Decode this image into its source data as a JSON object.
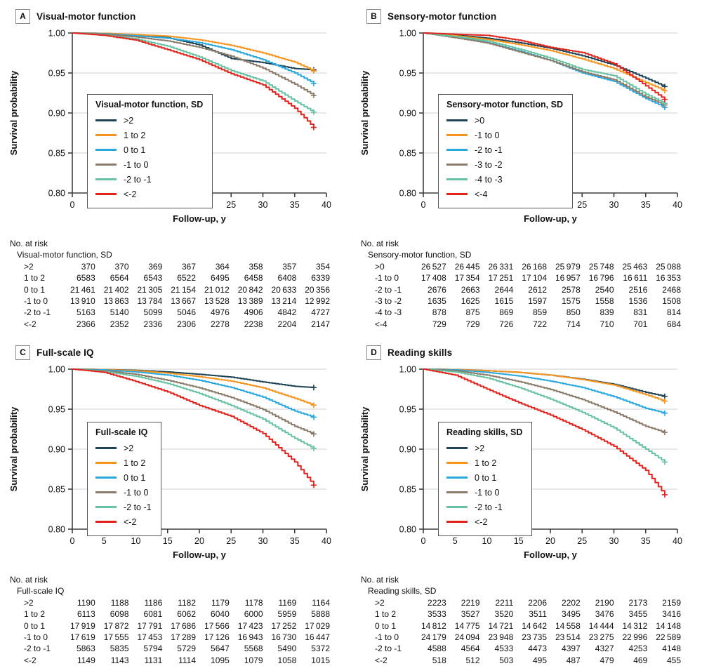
{
  "shared": {
    "xlabel": "Follow-up, y",
    "ylabel": "Survival probability",
    "risk_header": "No. at risk",
    "colors": {
      "navy": "#1D4354",
      "orange": "#F7941E",
      "blue": "#29A8E0",
      "brown": "#8A7A68",
      "teal": "#66C2A0",
      "red": "#E2231B",
      "grid": "#DBDBDB",
      "axis": "#3F3F3F",
      "legend_border": "#565656"
    }
  },
  "chart_data": [
    {
      "type": "line",
      "letter": "A",
      "title": "Visual-motor function",
      "legend_title": "Visual-motor function, SD",
      "xlabel": "Follow-up, y",
      "ylabel": "Survival probability",
      "xlim": [
        0,
        40
      ],
      "ylim": [
        0.8,
        1.0
      ],
      "xticks": [
        0,
        5,
        10,
        15,
        20,
        25,
        30,
        35,
        40
      ],
      "yticks": [
        1.0,
        0.95,
        0.9,
        0.85,
        0.8
      ],
      "grid": "horizontal",
      "legend_position": "inside-left",
      "x": [
        0,
        5,
        10,
        15,
        20,
        25,
        30,
        35,
        38
      ],
      "series": [
        {
          "name": ">2",
          "color": "#1D4354",
          "values": [
            1.0,
            0.9995,
            0.9975,
            0.994,
            0.985,
            0.968,
            0.963,
            0.9555,
            0.954
          ]
        },
        {
          "name": "1 to 2",
          "color": "#F7941E",
          "values": [
            1.0,
            0.9995,
            0.998,
            0.996,
            0.9915,
            0.9845,
            0.975,
            0.9635,
            0.9525
          ]
        },
        {
          "name": "0 to 1",
          "color": "#29A8E0",
          "values": [
            1.0,
            0.999,
            0.9965,
            0.9935,
            0.988,
            0.979,
            0.9665,
            0.95,
            0.937
          ]
        },
        {
          "name": "-1 to 0",
          "color": "#8A7A68",
          "values": [
            1.0,
            0.9985,
            0.995,
            0.99,
            0.982,
            0.971,
            0.956,
            0.936,
            0.922
          ]
        },
        {
          "name": "-2 to -1",
          "color": "#66C2A0",
          "values": [
            1.0,
            0.9975,
            0.9925,
            0.9835,
            0.97,
            0.953,
            0.94,
            0.915,
            0.901
          ]
        },
        {
          "name": "<-2",
          "color": "#E2231B",
          "values": [
            1.0,
            0.997,
            0.991,
            0.979,
            0.9665,
            0.949,
            0.935,
            0.906,
            0.882
          ]
        }
      ],
      "risk_table": {
        "subheader": "Visual-motor function, SD",
        "times": [
          0,
          5,
          10,
          15,
          20,
          25,
          30,
          35
        ],
        "rows": [
          {
            "label": ">2",
            "values": [
              "370",
              "370",
              "369",
              "367",
              "364",
              "358",
              "357",
              "354"
            ]
          },
          {
            "label": "1 to 2",
            "values": [
              "6583",
              "6564",
              "6543",
              "6522",
              "6495",
              "6458",
              "6408",
              "6339"
            ]
          },
          {
            "label": "0 to 1",
            "values": [
              "21 461",
              "21 402",
              "21 305",
              "21 154",
              "21 012",
              "20 842",
              "20 633",
              "20 356"
            ]
          },
          {
            "label": "-1 to 0",
            "values": [
              "13 910",
              "13 863",
              "13 784",
              "13 667",
              "13 528",
              "13 389",
              "13 214",
              "12 992"
            ]
          },
          {
            "label": "-2 to -1",
            "values": [
              "5163",
              "5140",
              "5099",
              "5046",
              "4976",
              "4906",
              "4842",
              "4727"
            ]
          },
          {
            "label": "<-2",
            "values": [
              "2366",
              "2352",
              "2336",
              "2306",
              "2278",
              "2238",
              "2204",
              "2147"
            ]
          }
        ]
      }
    },
    {
      "type": "line",
      "letter": "B",
      "title": "Sensory-motor function",
      "legend_title": "Sensory-motor function, SD",
      "xlabel": "Follow-up, y",
      "ylabel": "Survival probability",
      "xlim": [
        0,
        40
      ],
      "ylim": [
        0.8,
        1.0
      ],
      "xticks": [
        0,
        5,
        10,
        15,
        20,
        25,
        30,
        35,
        40
      ],
      "yticks": [
        1.0,
        0.95,
        0.9,
        0.85,
        0.8
      ],
      "grid": "horizontal",
      "legend_position": "inside-left",
      "x": [
        0,
        5,
        10,
        15,
        20,
        25,
        30,
        35,
        38
      ],
      "series": [
        {
          "name": ">0",
          "color": "#1D4354",
          "values": [
            1.0,
            0.9975,
            0.9935,
            0.988,
            0.981,
            0.9715,
            0.96,
            0.9435,
            0.933
          ]
        },
        {
          "name": "-1 to 0",
          "color": "#F7941E",
          "values": [
            1.0,
            0.9965,
            0.992,
            0.9855,
            0.978,
            0.9675,
            0.9555,
            0.938,
            0.928
          ]
        },
        {
          "name": "-2 to -1",
          "color": "#29A8E0",
          "values": [
            1.0,
            0.995,
            0.988,
            0.9775,
            0.9655,
            0.95,
            0.9395,
            0.918,
            0.907
          ]
        },
        {
          "name": "-3 to -2",
          "color": "#8A7A68",
          "values": [
            1.0,
            0.994,
            0.9875,
            0.9765,
            0.9655,
            0.9515,
            0.9415,
            0.92,
            0.91
          ]
        },
        {
          "name": "-4 to -3",
          "color": "#66C2A0",
          "values": [
            1.0,
            0.9955,
            0.99,
            0.98,
            0.9685,
            0.9545,
            0.9465,
            0.9235,
            0.912
          ]
        },
        {
          "name": "<-4",
          "color": "#E2231B",
          "values": [
            1.0,
            0.9985,
            0.997,
            0.991,
            0.982,
            0.9755,
            0.9615,
            0.934,
            0.917
          ]
        }
      ],
      "risk_table": {
        "subheader": "Sensory-motor function, SD",
        "times": [
          0,
          5,
          10,
          15,
          20,
          25,
          30,
          35
        ],
        "rows": [
          {
            "label": ">0",
            "values": [
              "26 527",
              "26 445",
              "26 331",
              "26 168",
              "25 979",
              "25 748",
              "25 463",
              "25 088"
            ]
          },
          {
            "label": "-1 to 0",
            "values": [
              "17 408",
              "17 354",
              "17 251",
              "17 104",
              "16 957",
              "16 796",
              "16 611",
              "16 353"
            ]
          },
          {
            "label": "-2 to -1",
            "values": [
              "2676",
              "2663",
              "2644",
              "2612",
              "2578",
              "2540",
              "2516",
              "2468"
            ]
          },
          {
            "label": "-3 to -2",
            "values": [
              "1635",
              "1625",
              "1615",
              "1597",
              "1575",
              "1558",
              "1536",
              "1508"
            ]
          },
          {
            "label": "-4 to -3",
            "values": [
              "878",
              "875",
              "869",
              "859",
              "850",
              "839",
              "831",
              "814"
            ]
          },
          {
            "label": "<-4",
            "values": [
              "729",
              "729",
              "726",
              "722",
              "714",
              "710",
              "701",
              "684"
            ]
          }
        ]
      }
    },
    {
      "type": "line",
      "letter": "C",
      "title": "Full-scale IQ",
      "legend_title": "Full-scale IQ",
      "xlabel": "Follow-up, y",
      "ylabel": "Survival probability",
      "xlim": [
        0,
        40
      ],
      "ylim": [
        0.8,
        1.0
      ],
      "xticks": [
        0,
        5,
        10,
        15,
        20,
        25,
        30,
        35,
        40
      ],
      "yticks": [
        1.0,
        0.95,
        0.9,
        0.85,
        0.8
      ],
      "grid": "horizontal",
      "legend_position": "inside-left",
      "x": [
        0,
        5,
        10,
        15,
        20,
        25,
        30,
        35,
        38
      ],
      "series": [
        {
          "name": ">2",
          "color": "#1D4354",
          "values": [
            1.0,
            0.9995,
            0.9985,
            0.9965,
            0.9935,
            0.99,
            0.984,
            0.9785,
            0.977
          ]
        },
        {
          "name": "1 to 2",
          "color": "#F7941E",
          "values": [
            1.0,
            0.9995,
            0.998,
            0.995,
            0.9905,
            0.985,
            0.9765,
            0.9635,
            0.955
          ]
        },
        {
          "name": "0 to 1",
          "color": "#29A8E0",
          "values": [
            1.0,
            0.999,
            0.9965,
            0.9925,
            0.986,
            0.977,
            0.965,
            0.9475,
            0.94
          ]
        },
        {
          "name": "-1 to 0",
          "color": "#8A7A68",
          "values": [
            1.0,
            0.998,
            0.9935,
            0.986,
            0.9765,
            0.9645,
            0.9495,
            0.9285,
            0.919
          ]
        },
        {
          "name": "-2 to -1",
          "color": "#66C2A0",
          "values": [
            1.0,
            0.997,
            0.991,
            0.982,
            0.9695,
            0.9545,
            0.9375,
            0.9135,
            0.901
          ]
        },
        {
          "name": "<-2",
          "color": "#E2231B",
          "values": [
            1.0,
            0.996,
            0.9845,
            0.9715,
            0.9545,
            0.941,
            0.9195,
            0.884,
            0.855
          ]
        }
      ],
      "risk_table": {
        "subheader": "Full-scale IQ",
        "times": [
          0,
          5,
          10,
          15,
          20,
          25,
          30,
          35
        ],
        "rows": [
          {
            "label": ">2",
            "values": [
              "1190",
              "1188",
              "1186",
              "1182",
              "1179",
              "1178",
              "1169",
              "1164"
            ]
          },
          {
            "label": "1 to 2",
            "values": [
              "6113",
              "6098",
              "6081",
              "6062",
              "6040",
              "6000",
              "5959",
              "5888"
            ]
          },
          {
            "label": "0 to 1",
            "values": [
              "17 919",
              "17 872",
              "17 791",
              "17 686",
              "17 566",
              "17 423",
              "17 252",
              "17 029"
            ]
          },
          {
            "label": "-1 to 0",
            "values": [
              "17 619",
              "17 555",
              "17 453",
              "17 289",
              "17 126",
              "16 943",
              "16 730",
              "16 447"
            ]
          },
          {
            "label": "-2 to -1",
            "values": [
              "5863",
              "5835",
              "5794",
              "5729",
              "5647",
              "5568",
              "5490",
              "5372"
            ]
          },
          {
            "label": "<-2",
            "values": [
              "1149",
              "1143",
              "1131",
              "1114",
              "1095",
              "1079",
              "1058",
              "1015"
            ]
          }
        ]
      }
    },
    {
      "type": "line",
      "letter": "D",
      "title": "Reading skills",
      "legend_title": "Reading skills, SD",
      "xlabel": "Follow-up, y",
      "ylabel": "Survival probability",
      "xlim": [
        0,
        40
      ],
      "ylim": [
        0.8,
        1.0
      ],
      "xticks": [
        0,
        5,
        10,
        15,
        20,
        25,
        30,
        35,
        40
      ],
      "yticks": [
        1.0,
        0.95,
        0.9,
        0.85,
        0.8
      ],
      "grid": "horizontal",
      "legend_position": "inside-left",
      "x": [
        0,
        5,
        10,
        15,
        20,
        25,
        30,
        35,
        38
      ],
      "series": [
        {
          "name": ">2",
          "color": "#1D4354",
          "values": [
            1.0,
            0.9995,
            0.998,
            0.996,
            0.9925,
            0.9875,
            0.981,
            0.971,
            0.966
          ]
        },
        {
          "name": "1 to 2",
          "color": "#F7941E",
          "values": [
            1.0,
            0.9995,
            0.998,
            0.996,
            0.9925,
            0.987,
            0.98,
            0.968,
            0.96
          ]
        },
        {
          "name": "0 to 1",
          "color": "#29A8E0",
          "values": [
            1.0,
            0.999,
            0.996,
            0.9915,
            0.985,
            0.977,
            0.9655,
            0.951,
            0.945
          ]
        },
        {
          "name": "-1 to 0",
          "color": "#8A7A68",
          "values": [
            1.0,
            0.998,
            0.9925,
            0.9845,
            0.9745,
            0.962,
            0.9465,
            0.9285,
            0.921
          ]
        },
        {
          "name": "-2 to -1",
          "color": "#66C2A0",
          "values": [
            1.0,
            0.9965,
            0.989,
            0.977,
            0.9625,
            0.946,
            0.9265,
            0.9,
            0.884
          ]
        },
        {
          "name": "<-2",
          "color": "#E2231B",
          "values": [
            1.0,
            0.9925,
            0.975,
            0.958,
            0.9425,
            0.9245,
            0.9035,
            0.8735,
            0.843
          ]
        }
      ],
      "risk_table": {
        "subheader": "Reading skills, SD",
        "times": [
          0,
          5,
          10,
          15,
          20,
          25,
          30,
          35
        ],
        "rows": [
          {
            "label": ">2",
            "values": [
              "2223",
              "2219",
              "2211",
              "2206",
              "2202",
              "2190",
              "2173",
              "2159"
            ]
          },
          {
            "label": "1 to 2",
            "values": [
              "3533",
              "3527",
              "3520",
              "3511",
              "3495",
              "3476",
              "3455",
              "3416"
            ]
          },
          {
            "label": "0 to 1",
            "values": [
              "14 812",
              "14 775",
              "14 721",
              "14 642",
              "14 558",
              "14 444",
              "14 312",
              "14 148"
            ]
          },
          {
            "label": "-1 to 0",
            "values": [
              "24 179",
              "24 094",
              "23 948",
              "23 735",
              "23 514",
              "23 275",
              "22 996",
              "22 589"
            ]
          },
          {
            "label": "-2 to -1",
            "values": [
              "4588",
              "4564",
              "4533",
              "4473",
              "4397",
              "4327",
              "4253",
              "4148"
            ]
          },
          {
            "label": "<-2",
            "values": [
              "518",
              "512",
              "503",
              "495",
              "487",
              "479",
              "469",
              "455"
            ]
          }
        ]
      }
    }
  ]
}
